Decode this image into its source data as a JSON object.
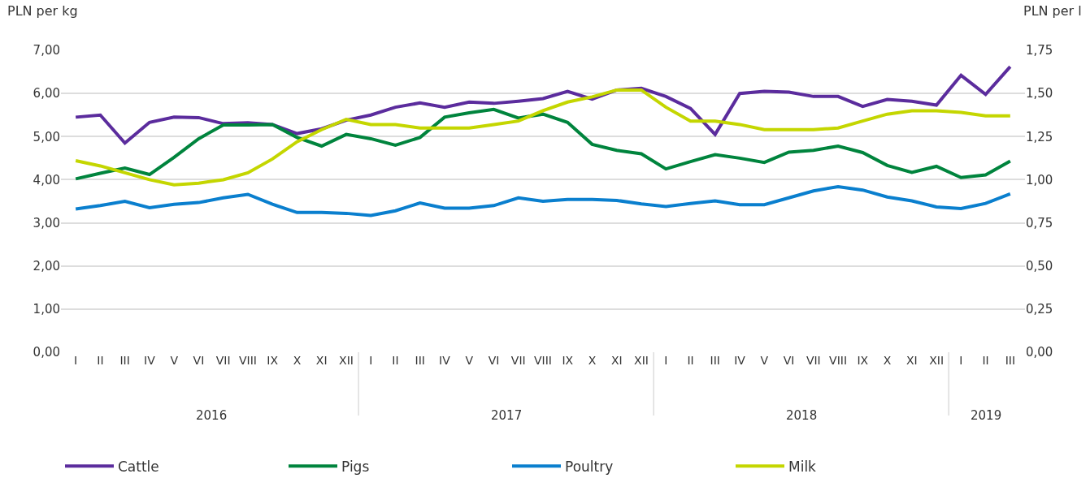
{
  "chart_data": {
    "type": "line",
    "ylabel": "PLN per kg",
    "y2label": "PLN per l",
    "categories": [
      "I",
      "II",
      "III",
      "IV",
      "V",
      "VI",
      "VII",
      "VIII",
      "IX",
      "X",
      "XI",
      "XII",
      "I",
      "II",
      "III",
      "IV",
      "V",
      "VI",
      "VII",
      "VIII",
      "IX",
      "X",
      "XI",
      "XII",
      "I",
      "II",
      "III",
      "IV",
      "V",
      "VI",
      "VII",
      "VIII",
      "IX",
      "X",
      "XI",
      "XII",
      "I",
      "II",
      "III"
    ],
    "annotations": [
      "2016",
      "2017",
      "2018",
      "2019"
    ],
    "ylim": [
      0,
      7
    ],
    "yticks": [
      {
        "value": 0,
        "label": "0,00"
      },
      {
        "value": 1,
        "label": "1,00"
      },
      {
        "value": 2,
        "label": "2,00"
      },
      {
        "value": 3,
        "label": "3,00"
      },
      {
        "value": 4,
        "label": "4,00"
      },
      {
        "value": 5,
        "label": "5,00"
      },
      {
        "value": 6,
        "label": "6,00"
      },
      {
        "value": 7,
        "label": "7,00"
      }
    ],
    "y2lim": [
      0,
      1.75
    ],
    "y2ticks": [
      {
        "value": 0,
        "label": "0,00"
      },
      {
        "value": 0.25,
        "label": "0,25"
      },
      {
        "value": 0.5,
        "label": "0,50"
      },
      {
        "value": 0.75,
        "label": "0,75"
      },
      {
        "value": 1,
        "label": "1,00"
      },
      {
        "value": 1.25,
        "label": "1,25"
      },
      {
        "value": 1.5,
        "label": "1,50"
      },
      {
        "value": 1.75,
        "label": "1,75"
      }
    ],
    "grid": "y",
    "legend": "bottom",
    "marker": "none",
    "line_style": "solid",
    "series": [
      {
        "name": "Cattle",
        "color": "#5b2c9d",
        "values": [
          5.45,
          5.5,
          4.85,
          5.33,
          5.45,
          5.44,
          5.3,
          5.32,
          5.28,
          5.07,
          5.18,
          5.38,
          5.5,
          5.68,
          5.78,
          5.68,
          5.8,
          5.77,
          5.82,
          5.88,
          6.05,
          5.87,
          6.08,
          6.12,
          5.93,
          5.65,
          5.05,
          6.0,
          6.05,
          6.03,
          5.93,
          5.93,
          5.7,
          5.86,
          5.82,
          5.73,
          6.42,
          5.98,
          6.62
        ]
      },
      {
        "name": "Pigs",
        "color": "#00843d",
        "values": [
          4.02,
          4.15,
          4.27,
          4.12,
          4.52,
          4.95,
          5.27,
          5.27,
          5.28,
          4.98,
          4.78,
          5.05,
          4.95,
          4.8,
          4.98,
          5.45,
          5.55,
          5.63,
          5.43,
          5.52,
          5.33,
          4.82,
          4.68,
          4.6,
          4.25,
          4.42,
          4.58,
          4.5,
          4.4,
          4.64,
          4.68,
          4.78,
          4.63,
          4.33,
          4.17,
          4.31,
          4.05,
          4.11,
          4.43
        ]
      },
      {
        "name": "Poultry",
        "color": "#0a7fce",
        "values": [
          3.32,
          3.4,
          3.5,
          3.35,
          3.43,
          3.47,
          3.58,
          3.66,
          3.43,
          3.24,
          3.24,
          3.22,
          3.17,
          3.28,
          3.46,
          3.34,
          3.34,
          3.4,
          3.58,
          3.5,
          3.54,
          3.54,
          3.52,
          3.44,
          3.38,
          3.45,
          3.51,
          3.42,
          3.42,
          3.58,
          3.74,
          3.84,
          3.76,
          3.6,
          3.51,
          3.37,
          3.33,
          3.45,
          3.67
        ]
      },
      {
        "name": "Milk",
        "color": "#c4d600",
        "axis": "y2",
        "values": [
          1.11,
          1.08,
          1.04,
          1.0,
          0.97,
          0.98,
          1.0,
          1.04,
          1.12,
          1.22,
          1.29,
          1.35,
          1.32,
          1.32,
          1.3,
          1.3,
          1.3,
          1.32,
          1.34,
          1.4,
          1.45,
          1.48,
          1.52,
          1.52,
          1.42,
          1.34,
          1.34,
          1.32,
          1.29,
          1.29,
          1.29,
          1.3,
          1.34,
          1.38,
          1.4,
          1.4,
          1.39,
          1.37,
          1.37
        ]
      }
    ]
  }
}
